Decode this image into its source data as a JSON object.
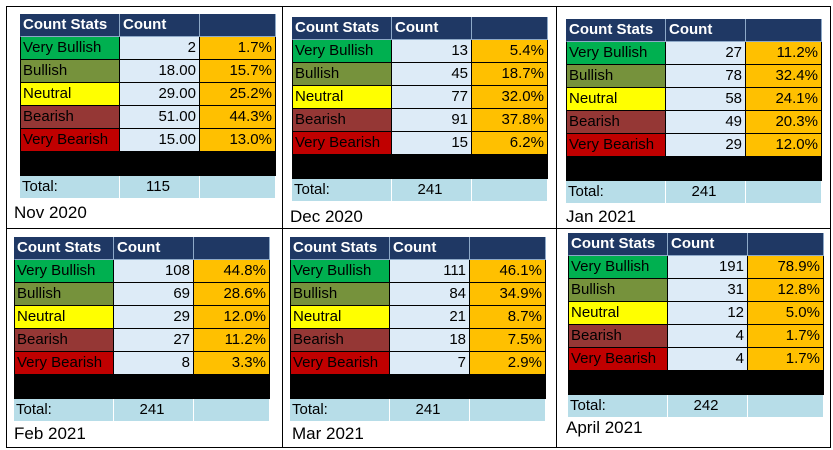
{
  "headers": {
    "col1": "Count Stats",
    "col2": "Count",
    "col3": ""
  },
  "total_label": "Total:",
  "row_labels": [
    "Very Bullish",
    "Bullish",
    "Neutral",
    "Bearish",
    "Very Bearish"
  ],
  "colors": {
    "header": "#1f3864",
    "very_bullish": "#00b050",
    "bullish": "#76923c",
    "neutral": "#ffff00",
    "bearish": "#953735",
    "very_bearish": "#c00000",
    "count_cell": "#ddebf7",
    "percent_cell": "#ffc000",
    "total_row": "#b7dde8"
  },
  "panels": [
    {
      "caption": "Nov 2020",
      "counts": [
        "2",
        "18.00",
        "29.00",
        "51.00",
        "15.00"
      ],
      "percents": [
        "1.7%",
        "15.7%",
        "25.2%",
        "44.3%",
        "13.0%"
      ],
      "total": "115"
    },
    {
      "caption": "Dec 2020",
      "counts": [
        "13",
        "45",
        "77",
        "91",
        "15"
      ],
      "percents": [
        "5.4%",
        "18.7%",
        "32.0%",
        "37.8%",
        "6.2%"
      ],
      "total": "241"
    },
    {
      "caption": "Jan 2021",
      "counts": [
        "27",
        "78",
        "58",
        "49",
        "29"
      ],
      "percents": [
        "11.2%",
        "32.4%",
        "24.1%",
        "20.3%",
        "12.0%"
      ],
      "total": "241"
    },
    {
      "caption": "Feb 2021",
      "counts": [
        "108",
        "69",
        "29",
        "27",
        "8"
      ],
      "percents": [
        "44.8%",
        "28.6%",
        "12.0%",
        "11.2%",
        "3.3%"
      ],
      "total": "241"
    },
    {
      "caption": "Mar 2021",
      "counts": [
        "111",
        "84",
        "21",
        "18",
        "7"
      ],
      "percents": [
        "46.1%",
        "34.9%",
        "8.7%",
        "7.5%",
        "2.9%"
      ],
      "total": "241"
    },
    {
      "caption": "April 2021",
      "counts": [
        "191",
        "31",
        "12",
        "4",
        "4"
      ],
      "percents": [
        "78.9%",
        "12.8%",
        "5.0%",
        "1.7%",
        "1.7%"
      ],
      "total": "242"
    }
  ]
}
